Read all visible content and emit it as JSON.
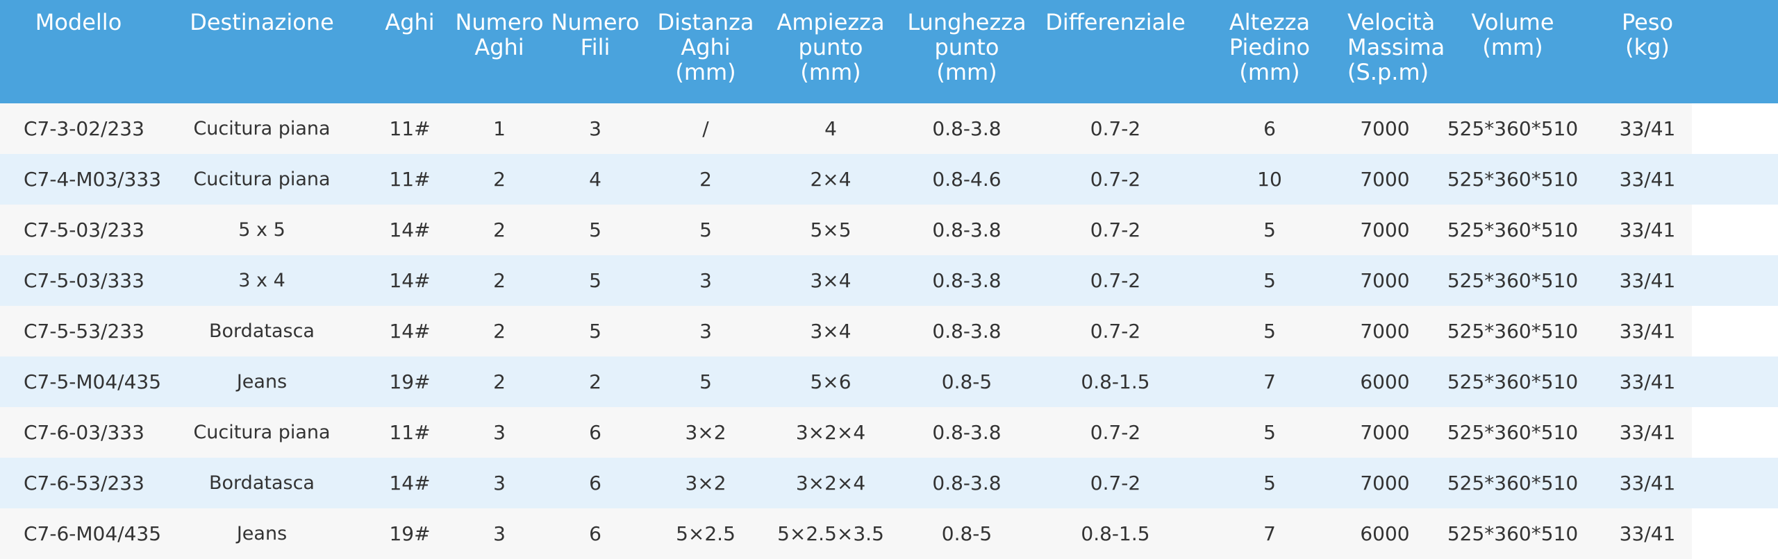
{
  "headers": [
    "Modello",
    "Destinazione",
    "Aghi",
    "Numero\nAghi",
    "Numero\nFili",
    "Distanza\nAghi\n(mm)",
    "Ampiezza\npunto\n(mm)",
    "Lunghezza\npunto\n(mm)",
    "Differenziale",
    "Altezza\nPiedino\n(mm)",
    "Velocità\nMassima\n(S.p.m)",
    "Volume\n(mm)",
    "Peso\n(kg)"
  ],
  "rows": [
    [
      "C7-3-02/233",
      "Cucitura piana",
      "11#",
      "1",
      "3",
      "/",
      "4",
      "0.8-3.8",
      "0.7-2",
      "6",
      "7000",
      "525*360*510",
      "33/41"
    ],
    [
      "C7-4-M03/333",
      "Cucitura piana",
      "11#",
      "2",
      "4",
      "2",
      "2×4",
      "0.8-4.6",
      "0.7-2",
      "10",
      "7000",
      "525*360*510",
      "33/41"
    ],
    [
      "C7-5-03/233",
      "5 x 5",
      "14#",
      "2",
      "5",
      "5",
      "5×5",
      "0.8-3.8",
      "0.7-2",
      "5",
      "7000",
      "525*360*510",
      "33/41"
    ],
    [
      "C7-5-03/333",
      "3 x 4",
      "14#",
      "2",
      "5",
      "3",
      "3×4",
      "0.8-3.8",
      "0.7-2",
      "5",
      "7000",
      "525*360*510",
      "33/41"
    ],
    [
      "C7-5-53/233",
      "Bordatasca",
      "14#",
      "2",
      "5",
      "3",
      "3×4",
      "0.8-3.8",
      "0.7-2",
      "5",
      "7000",
      "525*360*510",
      "33/41"
    ],
    [
      "C7-5-M04/435",
      "Jeans",
      "19#",
      "2",
      "2",
      "5",
      "5×6",
      "0.8-5",
      "0.8-1.5",
      "7",
      "6000",
      "525*360*510",
      "33/41"
    ],
    [
      "C7-6-03/333",
      "Cucitura piana",
      "11#",
      "3",
      "6",
      "3×2",
      "3×2×4",
      "0.8-3.8",
      "0.7-2",
      "5",
      "7000",
      "525*360*510",
      "33/41"
    ],
    [
      "C7-6-53/233",
      "Bordatasca",
      "14#",
      "3",
      "6",
      "3×2",
      "3×2×4",
      "0.8-3.8",
      "0.7-2",
      "5",
      "7000",
      "525*360*510",
      "33/41"
    ],
    [
      "C7-6-M04/435",
      "Jeans",
      "19#",
      "3",
      "6",
      "5×2.5",
      "5×2.5×3.5",
      "0.8-5",
      "0.8-1.5",
      "7",
      "6000",
      "525*360*510",
      "33/41"
    ]
  ],
  "colors": {
    "header_bg": "#4aa3dd",
    "header_text": "#ffffff",
    "row_light": "#f7f7f7",
    "row_blue": "#e4f1fb",
    "cell_text": "#333333"
  }
}
